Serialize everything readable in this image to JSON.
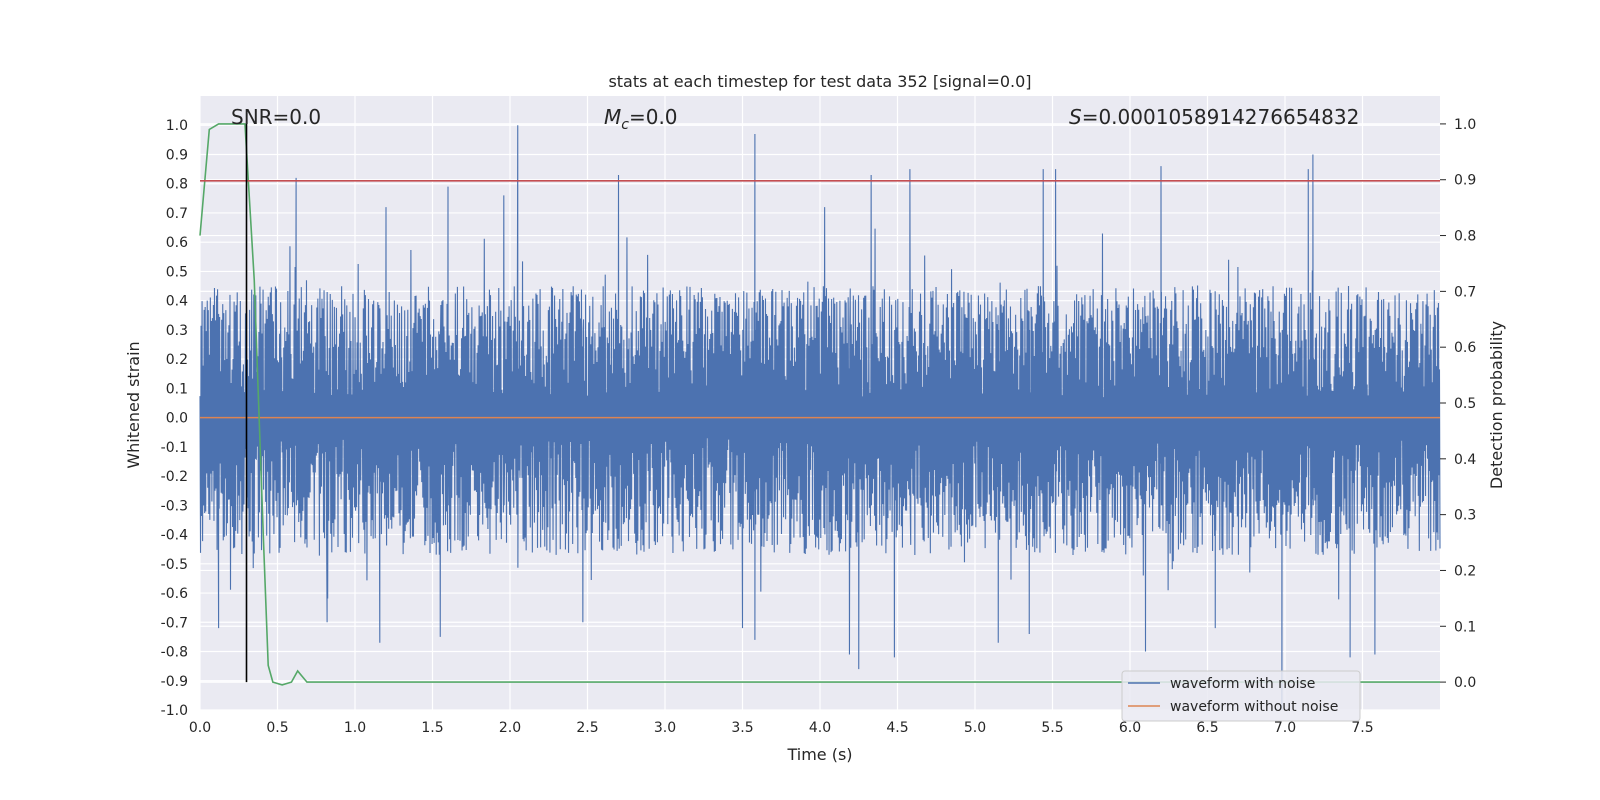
{
  "chart_data": {
    "type": "line",
    "title": "stats at each timestep for test data 352 [signal=0.0]",
    "xlabel": "Time (s)",
    "ylabel_left": "Whitened strain",
    "ylabel_right": "Detection probability",
    "xlim": [
      0.0,
      8.0
    ],
    "ylim_left": [
      -1.0,
      1.1
    ],
    "ylim_right": [
      -0.05,
      1.05
    ],
    "x_ticks": [
      "0.0",
      "0.5",
      "1.0",
      "1.5",
      "2.0",
      "2.5",
      "3.0",
      "3.5",
      "4.0",
      "4.5",
      "5.0",
      "5.5",
      "6.0",
      "6.5",
      "7.0",
      "7.5"
    ],
    "y_ticks_left": [
      "-1.0",
      "-0.9",
      "-0.8",
      "-0.7",
      "-0.6",
      "-0.5",
      "-0.4",
      "-0.3",
      "-0.2",
      "-0.1",
      "0.0",
      "0.1",
      "0.2",
      "0.3",
      "0.4",
      "0.5",
      "0.6",
      "0.7",
      "0.8",
      "0.9",
      "1.0"
    ],
    "y_ticks_right": [
      "0.0",
      "0.1",
      "0.2",
      "0.3",
      "0.4",
      "0.5",
      "0.6",
      "0.7",
      "0.8",
      "0.9",
      "1.0"
    ],
    "grid": true,
    "legend_position": "lower-right",
    "annotations": {
      "snr": "SNR=0.0",
      "mc_symbol": "M",
      "mc_sub": "c",
      "mc_value": "=0.0",
      "s_symbol": "S",
      "s_value": "=0.0001058914276654832"
    },
    "series": [
      {
        "name": "waveform with noise",
        "axis": "left",
        "color": "#4c72b0",
        "description_values": "dense noise oscillating roughly between -0.6 and 0.6 with peaks up to 1.0",
        "envelope": {
          "seed": 352,
          "n_points": 2400,
          "typical_max": 0.45,
          "typical_min": -0.47
        },
        "peaks": [
          {
            "x": 2.05,
            "y": 1.0
          },
          {
            "x": 7.18,
            "y": 0.9
          },
          {
            "x": 3.58,
            "y": 0.97
          },
          {
            "x": 4.58,
            "y": 0.85
          },
          {
            "x": 4.33,
            "y": 0.83
          },
          {
            "x": 2.7,
            "y": 0.83
          },
          {
            "x": 5.44,
            "y": 0.85
          },
          {
            "x": 5.52,
            "y": 0.85
          },
          {
            "x": 6.2,
            "y": 0.86
          },
          {
            "x": 7.15,
            "y": 0.85
          },
          {
            "x": 0.62,
            "y": 0.82
          },
          {
            "x": 4.03,
            "y": 0.72
          },
          {
            "x": 1.96,
            "y": 0.76
          },
          {
            "x": 1.2,
            "y": 0.72
          },
          {
            "x": 1.6,
            "y": 0.79
          }
        ],
        "troughs": [
          {
            "x": 6.98,
            "y": -1.0
          },
          {
            "x": 4.25,
            "y": -0.86
          },
          {
            "x": 4.48,
            "y": -0.82
          },
          {
            "x": 7.42,
            "y": -0.82
          },
          {
            "x": 4.19,
            "y": -0.81
          },
          {
            "x": 6.1,
            "y": -0.8
          },
          {
            "x": 7.58,
            "y": -0.81
          },
          {
            "x": 3.58,
            "y": -0.76
          },
          {
            "x": 3.5,
            "y": -0.72
          },
          {
            "x": 1.16,
            "y": -0.77
          },
          {
            "x": 1.55,
            "y": -0.75
          },
          {
            "x": 0.12,
            "y": -0.72
          },
          {
            "x": 2.47,
            "y": -0.7
          },
          {
            "x": 5.15,
            "y": -0.77
          },
          {
            "x": 5.35,
            "y": -0.74
          },
          {
            "x": 6.55,
            "y": -0.72
          },
          {
            "x": 0.82,
            "y": -0.7
          }
        ]
      },
      {
        "name": "waveform without noise",
        "axis": "left",
        "color": "#dd8452",
        "x": [
          0.0,
          8.0
        ],
        "y": [
          0.0,
          0.0
        ]
      },
      {
        "name": "",
        "axis": "right",
        "color": "#55a868",
        "x": [
          0.0,
          0.06,
          0.12,
          0.18,
          0.24,
          0.29,
          0.35,
          0.41,
          0.44,
          0.47,
          0.53,
          0.59,
          0.63,
          0.69,
          0.75,
          8.0
        ],
        "y": [
          0.8,
          0.99,
          1.0,
          1.0,
          1.0,
          1.0,
          0.72,
          0.25,
          0.03,
          0.0,
          -0.005,
          0.0,
          0.02,
          0.0,
          0.0,
          0.0
        ]
      },
      {
        "name": "",
        "axis": "left",
        "color": "#c44e52",
        "x": [
          0.0,
          8.0
        ],
        "y": [
          0.81,
          0.81
        ]
      },
      {
        "name": "",
        "axis": "right",
        "color": "#000000",
        "x": [
          0.3,
          0.3
        ],
        "y": [
          0.0,
          1.0
        ]
      }
    ]
  }
}
